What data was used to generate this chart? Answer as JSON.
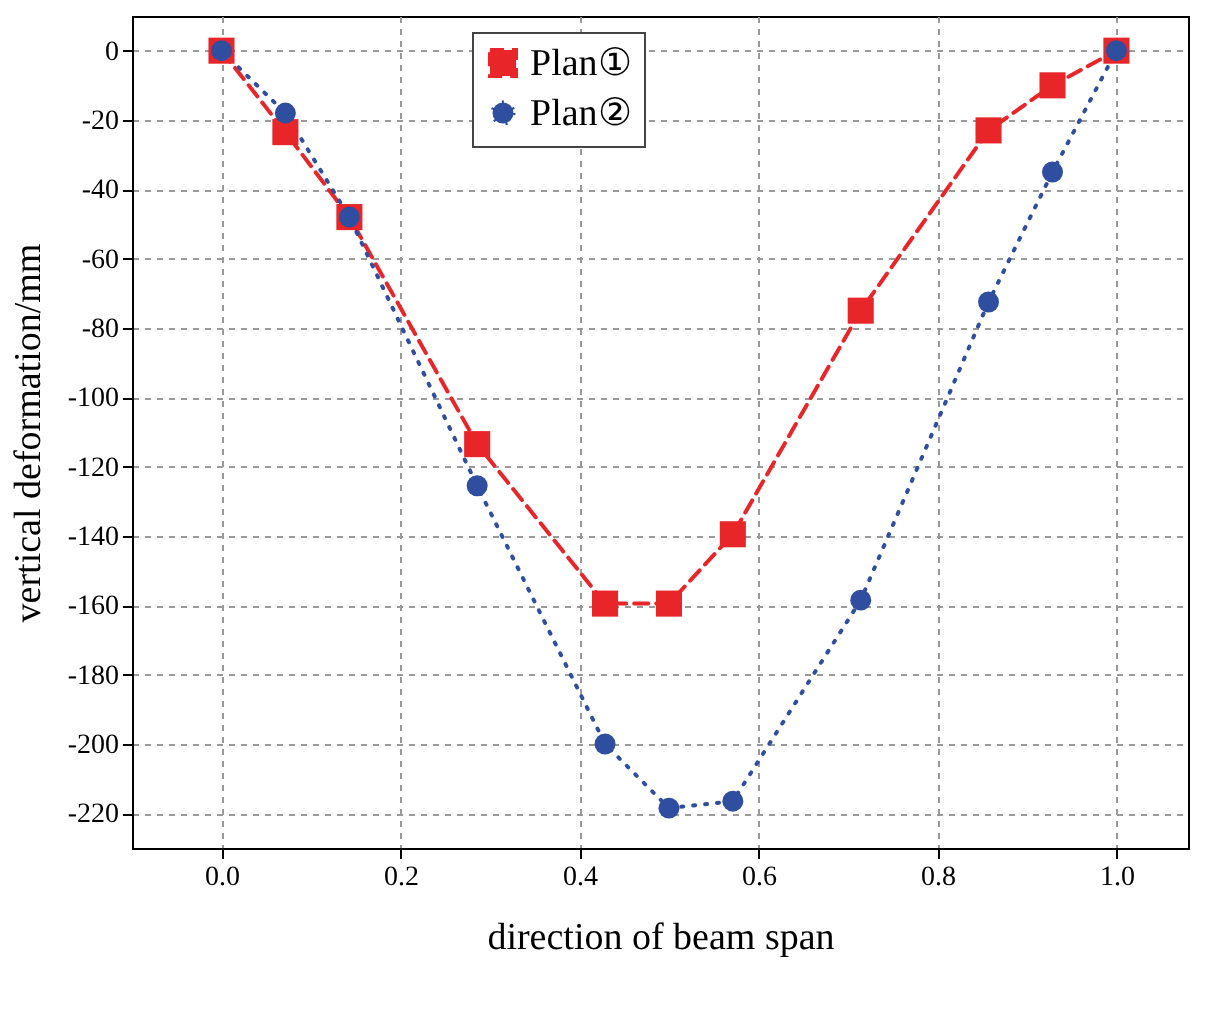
{
  "chart_data": {
    "type": "line",
    "xlabel": "direction of beam span",
    "ylabel": "vertical deformation/mm",
    "x": [
      0,
      0.0714,
      0.1429,
      0.2857,
      0.4286,
      0.5,
      0.5714,
      0.7143,
      0.8571,
      0.9286,
      1.0
    ],
    "series": [
      {
        "name": "Plan①",
        "color": "#e8262a",
        "marker": "square",
        "line_style": "dashed",
        "values": [
          0,
          -23.5,
          -48,
          -113.5,
          -159.5,
          -159.5,
          -139.5,
          -75,
          -23,
          -10,
          0
        ]
      },
      {
        "name": "Plan②",
        "color": "#2f4ea0",
        "marker": "circle",
        "line_style": "dotted",
        "values": [
          0,
          -18,
          -48,
          -125.5,
          -200,
          -218.5,
          -216.5,
          -158.5,
          -72.5,
          -35,
          0
        ]
      }
    ],
    "xlim": [
      -0.1,
      1.08
    ],
    "xticks": [
      {
        "value": 0,
        "label": "0.0"
      },
      0.2,
      0.4,
      0.6,
      0.8,
      {
        "value": 1,
        "label": "1.0"
      }
    ],
    "ylim": [
      -230,
      10
    ],
    "yticks": [
      0,
      -20,
      -40,
      -60,
      -80,
      -100,
      -120,
      -140,
      -160,
      -180,
      -200,
      -220
    ],
    "grid": true,
    "legend": "top"
  }
}
